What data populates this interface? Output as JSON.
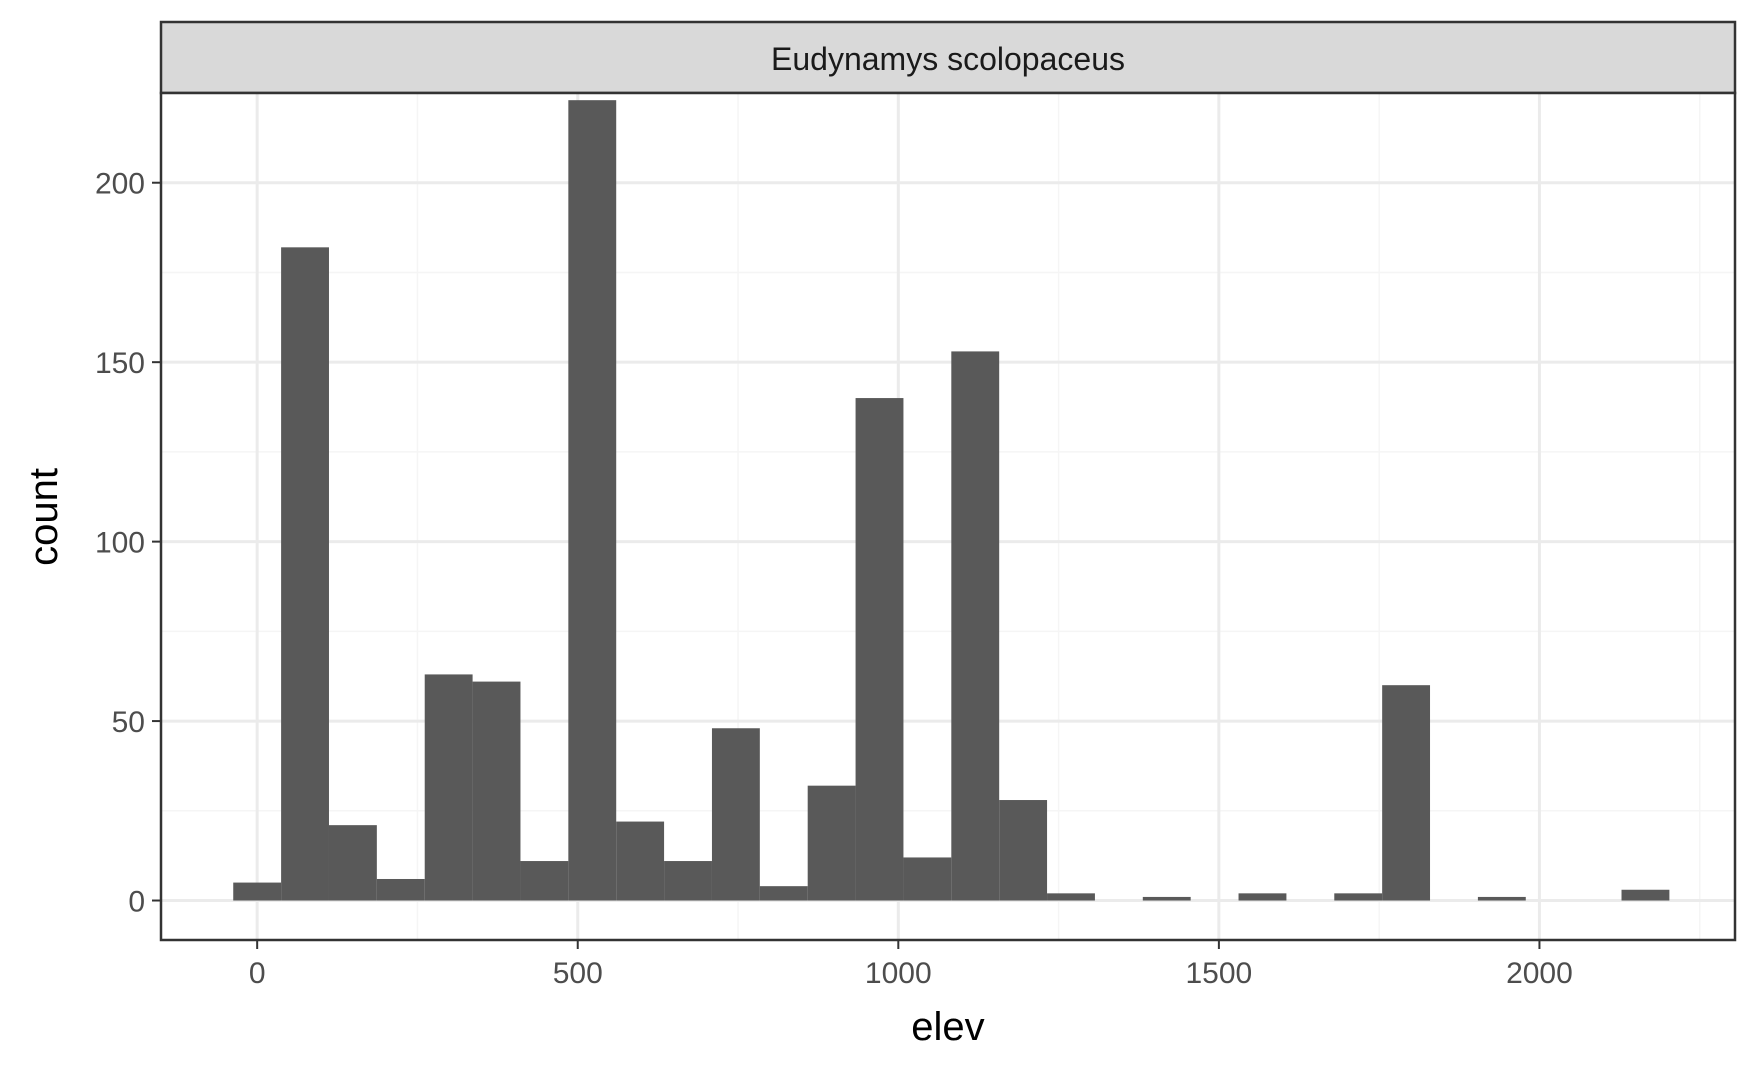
{
  "chart_data": {
    "type": "bar",
    "facet_label": "Eudynamys scolopaceus",
    "xlabel": "elev",
    "ylabel": "count",
    "xlim": [
      -150,
      2305
    ],
    "ylim": [
      -11,
      225
    ],
    "xticks": [
      0,
      500,
      1000,
      1500,
      2000
    ],
    "yticks": [
      0,
      50,
      100,
      150,
      200
    ],
    "x_minor_gridlines": [
      250,
      750,
      1250,
      1750,
      2250
    ],
    "y_minor_gridlines": [
      25,
      75,
      125,
      175,
      225
    ],
    "grid": true,
    "bin_width": 74.67,
    "bins": [
      {
        "x": 0,
        "count": 5
      },
      {
        "x": 74.67,
        "count": 182
      },
      {
        "x": 149.33,
        "count": 21
      },
      {
        "x": 224,
        "count": 6
      },
      {
        "x": 298.67,
        "count": 63
      },
      {
        "x": 373.33,
        "count": 61
      },
      {
        "x": 448,
        "count": 11
      },
      {
        "x": 522.67,
        "count": 223
      },
      {
        "x": 597.33,
        "count": 22
      },
      {
        "x": 672,
        "count": 11
      },
      {
        "x": 746.67,
        "count": 48
      },
      {
        "x": 821.33,
        "count": 4
      },
      {
        "x": 896,
        "count": 32
      },
      {
        "x": 970.67,
        "count": 140
      },
      {
        "x": 1045.33,
        "count": 12
      },
      {
        "x": 1120,
        "count": 153
      },
      {
        "x": 1194.67,
        "count": 28
      },
      {
        "x": 1269.33,
        "count": 2
      },
      {
        "x": 1344,
        "count": 0
      },
      {
        "x": 1418.67,
        "count": 1
      },
      {
        "x": 1493.33,
        "count": 0
      },
      {
        "x": 1568,
        "count": 2
      },
      {
        "x": 1642.67,
        "count": 0
      },
      {
        "x": 1717.33,
        "count": 2
      },
      {
        "x": 1792,
        "count": 60
      },
      {
        "x": 1866.67,
        "count": 0
      },
      {
        "x": 1941.33,
        "count": 1
      },
      {
        "x": 2016,
        "count": 0
      },
      {
        "x": 2090.67,
        "count": 0
      },
      {
        "x": 2165.33,
        "count": 3
      }
    ],
    "colors": {
      "bar": "#595959",
      "strip_fill": "#d9d9d9",
      "panel_border": "#333333",
      "grid_major": "#ebebeb",
      "grid_minor": "#f5f5f5"
    }
  }
}
